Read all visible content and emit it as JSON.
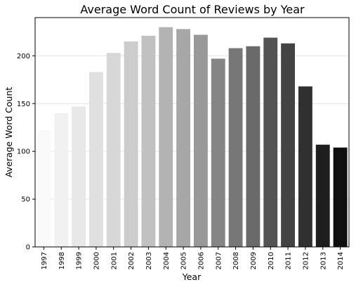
{
  "chart_data": {
    "type": "bar",
    "title": "Average Word Count of Reviews by Year",
    "xlabel": "Year",
    "ylabel": "Average Word Count",
    "categories": [
      "1997",
      "1998",
      "1999",
      "2000",
      "2001",
      "2002",
      "2003",
      "2004",
      "2005",
      "2006",
      "2007",
      "2008",
      "2009",
      "2010",
      "2011",
      "2012",
      "2013",
      "2014"
    ],
    "values": [
      122,
      140,
      147,
      183,
      203,
      215,
      221,
      230,
      228,
      222,
      197,
      208,
      210,
      219,
      213,
      168,
      107,
      104
    ],
    "ylim": [
      0,
      240
    ],
    "yticks": [
      0,
      50,
      100,
      150,
      200
    ],
    "grid": true,
    "bar_colors": [
      "#f9f9f9",
      "#f1f1f1",
      "#e8e8e8",
      "#e0e0e0",
      "#d7d7d7",
      "#cccccc",
      "#c1c1c1",
      "#b3b3b3",
      "#a7a7a7",
      "#999999",
      "#858585",
      "#777777",
      "#6a6a6a",
      "#545454",
      "#434343",
      "#303030",
      "#1e1e1e",
      "#0f0f0f"
    ]
  }
}
